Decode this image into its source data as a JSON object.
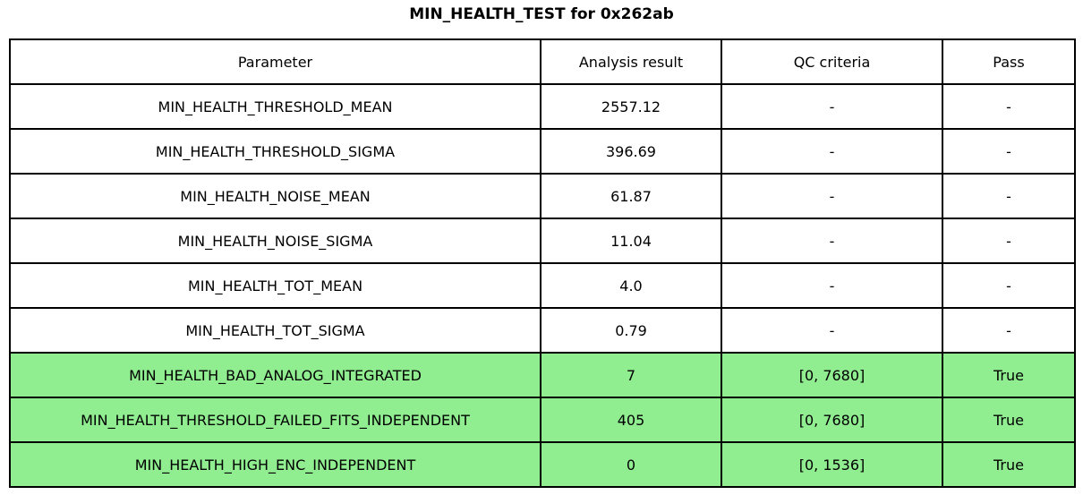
{
  "title": "MIN_HEALTH_TEST for 0x262ab",
  "colors": {
    "pass_row_green": "#90EE90",
    "border": "#000000",
    "background": "#ffffff",
    "text": "#000000"
  },
  "table": {
    "columns": [
      "Parameter",
      "Analysis result",
      "QC criteria",
      "Pass"
    ],
    "rows": [
      {
        "parameter": "MIN_HEALTH_THRESHOLD_MEAN",
        "result": "2557.12",
        "qc": "-",
        "pass": "-",
        "highlighted": false
      },
      {
        "parameter": "MIN_HEALTH_THRESHOLD_SIGMA",
        "result": "396.69",
        "qc": "-",
        "pass": "-",
        "highlighted": false
      },
      {
        "parameter": "MIN_HEALTH_NOISE_MEAN",
        "result": "61.87",
        "qc": "-",
        "pass": "-",
        "highlighted": false
      },
      {
        "parameter": "MIN_HEALTH_NOISE_SIGMA",
        "result": "11.04",
        "qc": "-",
        "pass": "-",
        "highlighted": false
      },
      {
        "parameter": "MIN_HEALTH_TOT_MEAN",
        "result": "4.0",
        "qc": "-",
        "pass": "-",
        "highlighted": false
      },
      {
        "parameter": "MIN_HEALTH_TOT_SIGMA",
        "result": "0.79",
        "qc": "-",
        "pass": "-",
        "highlighted": false
      },
      {
        "parameter": "MIN_HEALTH_BAD_ANALOG_INTEGRATED",
        "result": "7",
        "qc": "[0, 7680]",
        "pass": "True",
        "highlighted": true
      },
      {
        "parameter": "MIN_HEALTH_THRESHOLD_FAILED_FITS_INDEPENDENT",
        "result": "405",
        "qc": "[0, 7680]",
        "pass": "True",
        "highlighted": true
      },
      {
        "parameter": "MIN_HEALTH_HIGH_ENC_INDEPENDENT",
        "result": "0",
        "qc": "[0, 1536]",
        "pass": "True",
        "highlighted": true
      }
    ]
  },
  "chart_data": {
    "type": "table",
    "title": "MIN_HEALTH_TEST for 0x262ab",
    "columns": [
      "Parameter",
      "Analysis result",
      "QC criteria",
      "Pass"
    ],
    "rows": [
      [
        "MIN_HEALTH_THRESHOLD_MEAN",
        "2557.12",
        "-",
        "-"
      ],
      [
        "MIN_HEALTH_THRESHOLD_SIGMA",
        "396.69",
        "-",
        "-"
      ],
      [
        "MIN_HEALTH_NOISE_MEAN",
        "61.87",
        "-",
        "-"
      ],
      [
        "MIN_HEALTH_NOISE_SIGMA",
        "11.04",
        "-",
        "-"
      ],
      [
        "MIN_HEALTH_TOT_MEAN",
        "4.0",
        "-",
        "-"
      ],
      [
        "MIN_HEALTH_TOT_SIGMA",
        "0.79",
        "-",
        "-"
      ],
      [
        "MIN_HEALTH_BAD_ANALOG_INTEGRATED",
        "7",
        "[0, 7680]",
        "True"
      ],
      [
        "MIN_HEALTH_THRESHOLD_FAILED_FITS_INDEPENDENT",
        "405",
        "[0, 7680]",
        "True"
      ],
      [
        "MIN_HEALTH_HIGH_ENC_INDEPENDENT",
        "0",
        "[0, 1536]",
        "True"
      ]
    ],
    "highlighted_rows": [
      6,
      7,
      8
    ],
    "layout_hints": {
      "highlight_color": "#90EE90",
      "grid": true,
      "title_position": "top-center"
    }
  }
}
